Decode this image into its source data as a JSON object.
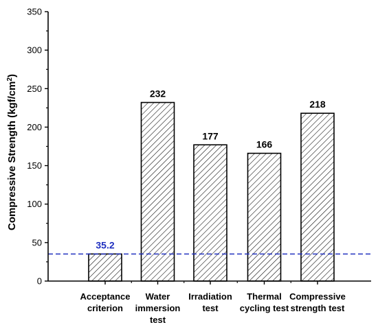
{
  "chart_data": {
    "type": "bar",
    "categories": [
      [
        "Acceptance",
        "criterion"
      ],
      [
        "Water",
        "immersion",
        "test"
      ],
      [
        "Irradiation",
        "test"
      ],
      [
        "Thermal",
        "cycling test"
      ],
      [
        "Compressive",
        "strength test"
      ]
    ],
    "values": [
      35.2,
      232,
      177,
      166,
      218
    ],
    "data_labels": [
      "35.2",
      "232",
      "177",
      "166",
      "218"
    ],
    "ylabel": "Compressive Strength (kgf/cm",
    "ylabel_superscript": "2",
    "ylabel_suffix": ")",
    "ylim": [
      0,
      350
    ],
    "yticks": [
      0,
      50,
      100,
      150,
      200,
      250,
      300,
      350
    ],
    "bar_fill": "diagonal-hatch",
    "reference_line": {
      "value": 35.2,
      "style": "dashed",
      "color": "#1f2fbf"
    },
    "reference_label_color": "#1f2fbf",
    "grid": false
  }
}
